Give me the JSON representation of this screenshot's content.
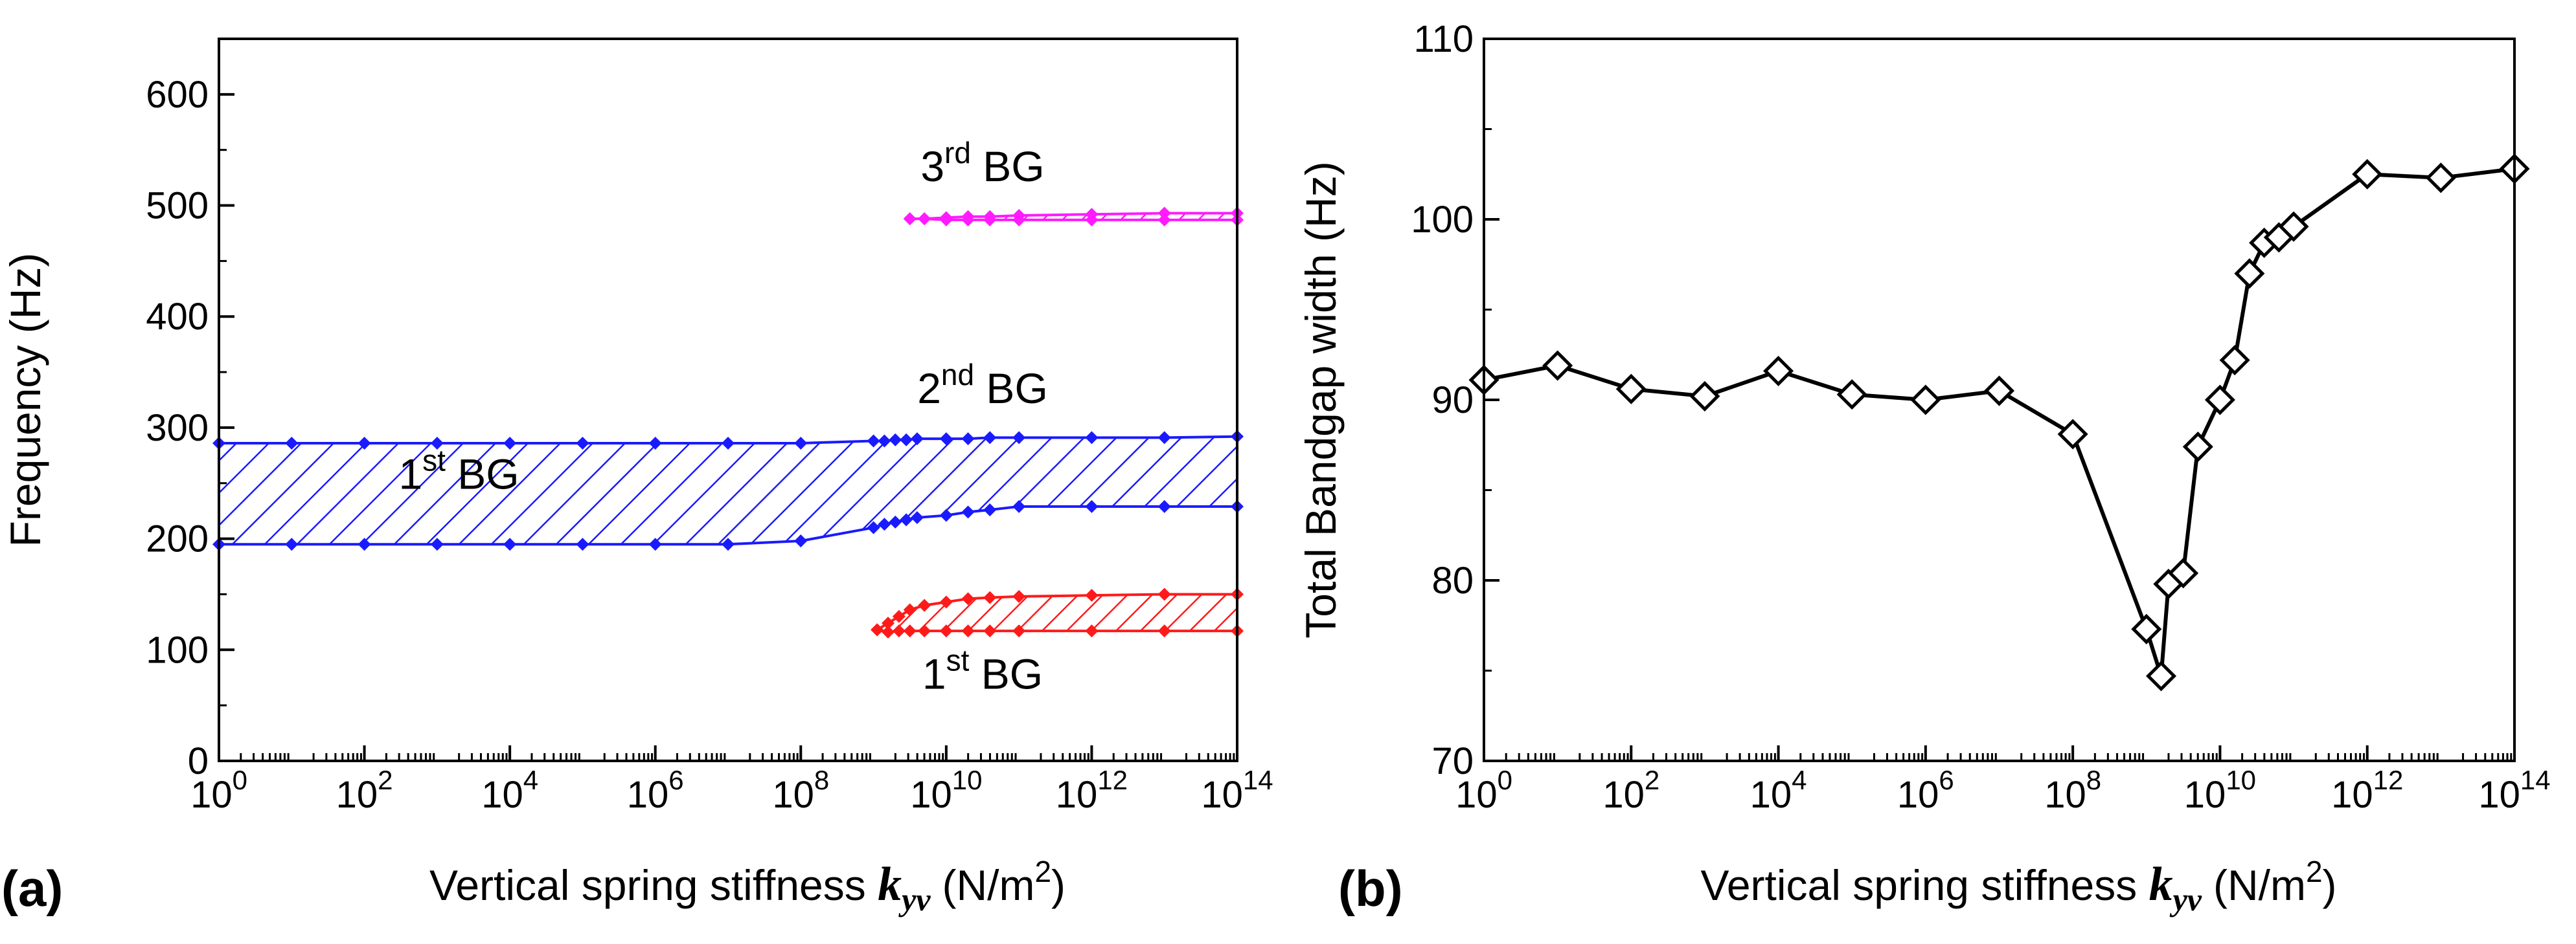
{
  "chart_data": [
    {
      "type": "line",
      "panel_label": "(a)",
      "xlabel": "Vertical spring stiffness",
      "xlabel_symbol": "k",
      "xlabel_symbol_sub": "yv",
      "xlabel_unit_pre": "(N/m",
      "xlabel_unit_sup": "2",
      "xlabel_unit_post": ")",
      "ylabel": "Frequency (Hz)",
      "xscale": "log10",
      "xlim_exp": [
        0,
        14
      ],
      "ylim": [
        0,
        650
      ],
      "x_ticks": [
        {
          "exp": 0,
          "base": "10",
          "sup": "0"
        },
        {
          "exp": 2,
          "base": "10",
          "sup": "2"
        },
        {
          "exp": 4,
          "base": "10",
          "sup": "4"
        },
        {
          "exp": 6,
          "base": "10",
          "sup": "6"
        },
        {
          "exp": 8,
          "base": "10",
          "sup": "8"
        },
        {
          "exp": 10,
          "base": "10",
          "sup": "10"
        },
        {
          "exp": 12,
          "base": "10",
          "sup": "12"
        },
        {
          "exp": 14,
          "base": "10",
          "sup": "14"
        }
      ],
      "y_ticks": [
        {
          "value": 0,
          "label": "0"
        },
        {
          "value": 100,
          "label": "100"
        },
        {
          "value": 200,
          "label": "200"
        },
        {
          "value": 300,
          "label": "300"
        },
        {
          "value": 400,
          "label": "400"
        },
        {
          "value": 500,
          "label": "500"
        },
        {
          "value": 600,
          "label": "600"
        }
      ],
      "bands": [
        {
          "name": "blue-band",
          "color": "#1a1aff",
          "x_exp": [
            0,
            1,
            2,
            3,
            4,
            5,
            6,
            7,
            8,
            9,
            9.15,
            9.3,
            9.45,
            9.6,
            10,
            10.3,
            10.6,
            11,
            12,
            13,
            14
          ],
          "upper": [
            286,
            286,
            286,
            286,
            286,
            286,
            286,
            286,
            286,
            288,
            288,
            289,
            289,
            290,
            290,
            290,
            291,
            291,
            291,
            291,
            292
          ],
          "lower": [
            195,
            195,
            195,
            195,
            195,
            195,
            195,
            195,
            198,
            210,
            213,
            215,
            217,
            219,
            221,
            224,
            226,
            229,
            229,
            229,
            229
          ]
        },
        {
          "name": "red-band",
          "color": "#ff1a1a",
          "x_exp": [
            9.05,
            9.2,
            9.35,
            9.5,
            9.7,
            10,
            10.3,
            10.6,
            11,
            12,
            13,
            14
          ],
          "upper": [
            118,
            124,
            130,
            136,
            140,
            143,
            146,
            147,
            148,
            149,
            150,
            150
          ],
          "lower": [
            118,
            116,
            117,
            117,
            117,
            117,
            117,
            117,
            117,
            117,
            117,
            117
          ]
        },
        {
          "name": "magenta-band",
          "color": "#ff1aff",
          "x_exp": [
            9.5,
            9.7,
            10,
            10.3,
            10.6,
            11,
            12,
            13,
            14
          ],
          "upper": [
            488,
            488,
            489,
            490,
            490,
            491,
            492,
            493,
            493
          ],
          "lower": [
            488,
            488,
            487,
            487,
            487,
            487,
            487,
            487,
            487
          ]
        }
      ],
      "annotations": [
        {
          "name": "label-1st-bg-blue",
          "base": "1",
          "sup": "st",
          "rest": " BG",
          "x_exp": 3.3,
          "y": 245
        },
        {
          "name": "label-2nd-bg-blue",
          "base": "2",
          "sup": "nd",
          "rest": " BG",
          "x_exp": 10.5,
          "y": 322
        },
        {
          "name": "label-3rd-bg-magenta",
          "base": "3",
          "sup": "rd",
          "rest": " BG",
          "x_exp": 10.5,
          "y": 522
        },
        {
          "name": "label-1st-bg-red",
          "base": "1",
          "sup": "st",
          "rest": " BG",
          "x_exp": 10.5,
          "y": 65
        }
      ]
    },
    {
      "type": "line",
      "panel_label": "(b)",
      "xlabel": "Vertical spring stiffness",
      "xlabel_symbol": "k",
      "xlabel_symbol_sub": "yv",
      "xlabel_unit_pre": "(N/m",
      "xlabel_unit_sup": "2",
      "xlabel_unit_post": ")",
      "ylabel": "Total Bandgap width (Hz)",
      "xscale": "log10",
      "xlim_exp": [
        0,
        14
      ],
      "ylim": [
        70,
        110
      ],
      "x_ticks": [
        {
          "exp": 0,
          "base": "10",
          "sup": "0"
        },
        {
          "exp": 2,
          "base": "10",
          "sup": "2"
        },
        {
          "exp": 4,
          "base": "10",
          "sup": "4"
        },
        {
          "exp": 6,
          "base": "10",
          "sup": "6"
        },
        {
          "exp": 8,
          "base": "10",
          "sup": "8"
        },
        {
          "exp": 10,
          "base": "10",
          "sup": "10"
        },
        {
          "exp": 12,
          "base": "10",
          "sup": "12"
        },
        {
          "exp": 14,
          "base": "10",
          "sup": "14"
        }
      ],
      "y_ticks": [
        {
          "value": 70,
          "label": "70"
        },
        {
          "value": 80,
          "label": "80"
        },
        {
          "value": 90,
          "label": "90"
        },
        {
          "value": 100,
          "label": "100"
        },
        {
          "value": 110,
          "label": "110"
        }
      ],
      "series": [
        {
          "name": "Total bandgap width",
          "color": "#000000",
          "marker": "diamond-open",
          "x_exp": [
            0,
            1,
            2,
            3,
            4,
            5,
            6,
            7,
            8,
            9,
            9.2,
            9.3,
            9.5,
            9.7,
            10,
            10.2,
            10.4,
            10.6,
            10.8,
            11,
            12,
            13,
            14
          ],
          "y": [
            91.1,
            91.9,
            90.6,
            90.2,
            91.6,
            90.3,
            90.0,
            90.5,
            88.1,
            77.3,
            74.7,
            79.8,
            80.4,
            87.4,
            90.0,
            92.2,
            97.0,
            98.7,
            99.0,
            99.6,
            102.5,
            102.3,
            102.8
          ]
        }
      ]
    }
  ]
}
